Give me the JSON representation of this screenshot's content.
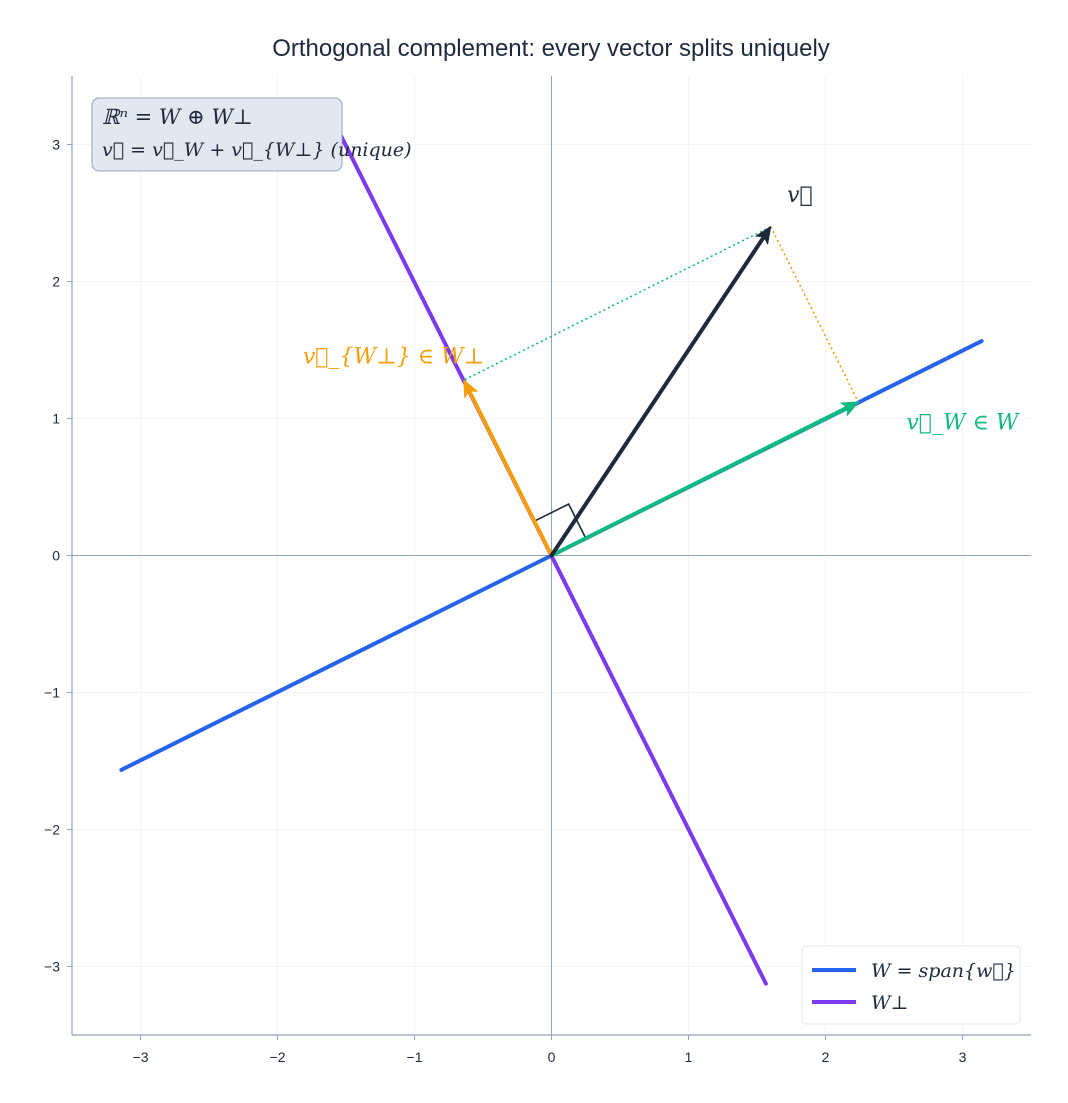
{
  "chart_data": {
    "type": "line",
    "title": "Orthogonal complement: every vector splits uniquely",
    "xlim": [
      -3.5,
      3.5
    ],
    "ylim": [
      -3.5,
      3.5
    ],
    "xticks": [
      -3,
      -2,
      -1,
      0,
      1,
      2,
      3
    ],
    "yticks": [
      -3,
      -2,
      -1,
      0,
      1,
      2,
      3
    ],
    "xtick_labels": [
      "−3",
      "−2",
      "−1",
      "0",
      "1",
      "2",
      "3"
    ],
    "ytick_labels": [
      "−3",
      "−2",
      "−1",
      "0",
      "1",
      "2",
      "3"
    ],
    "grid": true,
    "legend_position": "bottom-right",
    "series": [
      {
        "name": "W = span{w⃗}",
        "role": "subspace-W",
        "color": "#2563eb",
        "x": [
          -3.14,
          3.14
        ],
        "y": [
          -1.565,
          1.565
        ]
      },
      {
        "name": "W⊥",
        "role": "subspace-W-perp",
        "color": "#7c3aed",
        "x": [
          -1.57,
          1.565
        ],
        "y": [
          3.13,
          -3.125
        ]
      }
    ],
    "vectors": [
      {
        "label": "v⃗",
        "color": "#1e293b",
        "from": [
          0,
          0
        ],
        "to": [
          1.6,
          2.4
        ]
      },
      {
        "label": "v⃗_W ∈ W",
        "color": "#10b981",
        "from": [
          0,
          0
        ],
        "to": [
          2.24,
          1.12
        ]
      },
      {
        "label": "v⃗_{W⊥} ∈ W⊥",
        "color": "#f59e0b",
        "from": [
          0,
          0
        ],
        "to": [
          -0.64,
          1.28
        ]
      }
    ],
    "projection_guides": [
      {
        "color": "#10b981",
        "from": [
          1.6,
          2.4
        ],
        "to": [
          -0.64,
          1.28
        ]
      },
      {
        "color": "#f59e0b",
        "from": [
          1.6,
          2.4
        ],
        "to": [
          2.24,
          1.12
        ]
      }
    ],
    "annotations": {
      "v_label": "v⃗",
      "vw_label": "v⃗_W ∈ W",
      "vwperp_label": "v⃗_{W⊥} ∈ W⊥",
      "info_line1": "ℝⁿ = W ⊕ W⊥",
      "info_line2": "v⃗ = v⃗_W + v⃗_{W⊥} (unique)"
    }
  }
}
